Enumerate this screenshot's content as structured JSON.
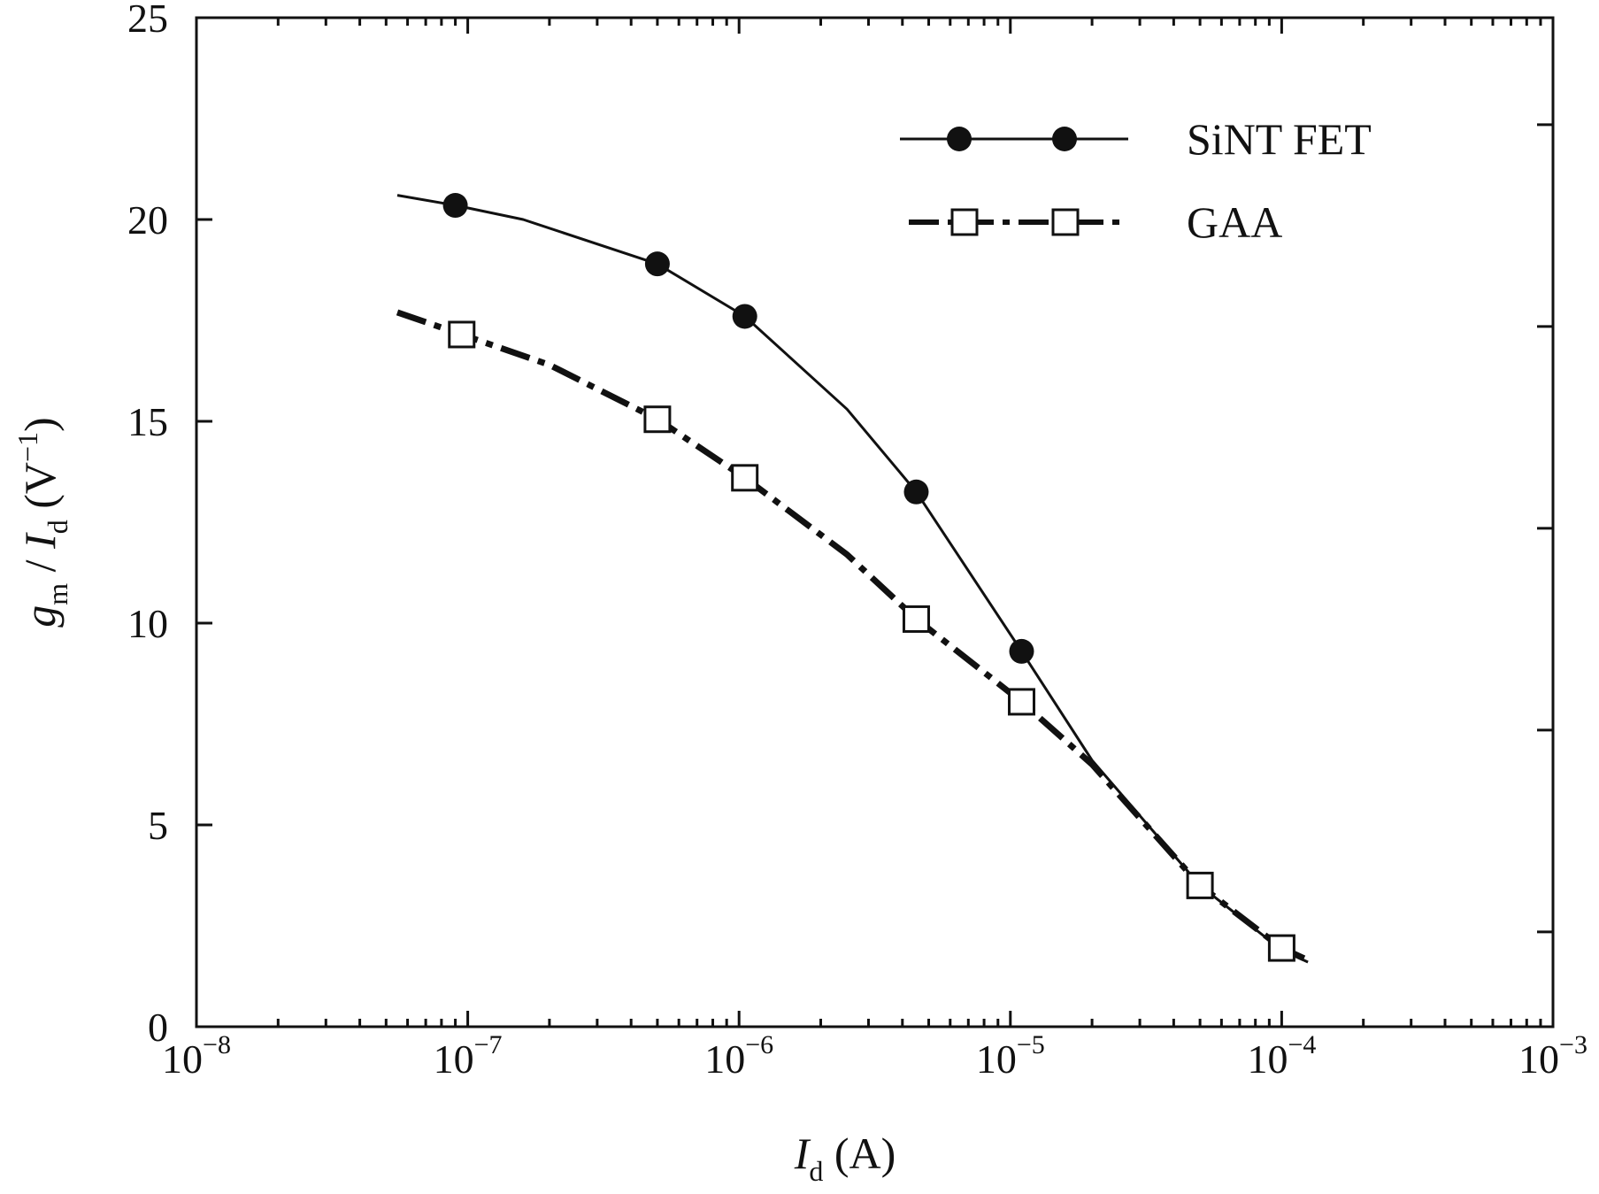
{
  "chart_data": {
    "type": "line",
    "title": "",
    "xlabel": {
      "main": "I",
      "sub": "d",
      "rest": " (A)"
    },
    "ylabel": {
      "g": "g",
      "g_sub": "m",
      "slash": " / ",
      "i": "I",
      "i_sub": "d",
      "unit_open": " (V",
      "unit_sup": "−1",
      "unit_close": ")"
    },
    "x_scale": "log",
    "xlim": [
      1e-08,
      0.001
    ],
    "ylim": [
      0,
      25
    ],
    "x_ticks": [
      {
        "value": 1e-08,
        "base": "10",
        "exp": "−8"
      },
      {
        "value": 1e-07,
        "base": "10",
        "exp": "−7"
      },
      {
        "value": 1e-06,
        "base": "10",
        "exp": "−6"
      },
      {
        "value": 1e-05,
        "base": "10",
        "exp": "−5"
      },
      {
        "value": 0.0001,
        "base": "10",
        "exp": "−4"
      },
      {
        "value": 0.001,
        "base": "10",
        "exp": "−3"
      }
    ],
    "y_ticks": [
      {
        "value": 0,
        "label": "0"
      },
      {
        "value": 5,
        "label": "5"
      },
      {
        "value": 10,
        "label": "10"
      },
      {
        "value": 15,
        "label": "15"
      },
      {
        "value": 20,
        "label": "20"
      },
      {
        "value": 25,
        "label": "25"
      }
    ],
    "grid": false,
    "legend_position": "top-right",
    "series": [
      {
        "name": "SiNT FET",
        "marker": "filled-circle",
        "line": "solid",
        "color": "#111111",
        "curve": [
          [
            5.5e-08,
            20.6
          ],
          [
            9e-08,
            20.35
          ],
          [
            1.6e-07,
            20.0
          ],
          [
            5e-07,
            18.9
          ],
          [
            1.05e-06,
            17.6
          ],
          [
            2.5e-06,
            15.3
          ],
          [
            4.5e-06,
            13.25
          ],
          [
            1.1e-05,
            9.3
          ],
          [
            2e-05,
            6.6
          ],
          [
            5e-05,
            3.5
          ],
          [
            0.0001,
            1.9
          ],
          [
            0.000125,
            1.6
          ]
        ],
        "markers": [
          [
            9e-08,
            20.35
          ],
          [
            5e-07,
            18.9
          ],
          [
            1.05e-06,
            17.6
          ],
          [
            4.5e-06,
            13.25
          ],
          [
            1.1e-05,
            9.3
          ]
        ]
      },
      {
        "name": "GAA",
        "marker": "open-square",
        "line": "dash-dot",
        "color": "#111111",
        "curve": [
          [
            5.5e-08,
            17.7
          ],
          [
            9.5e-08,
            17.15
          ],
          [
            2e-07,
            16.4
          ],
          [
            5e-07,
            15.05
          ],
          [
            1.05e-06,
            13.6
          ],
          [
            2.5e-06,
            11.7
          ],
          [
            4.5e-06,
            10.1
          ],
          [
            1.1e-05,
            8.05
          ],
          [
            2e-05,
            6.5
          ],
          [
            5e-05,
            3.5
          ],
          [
            0.0001,
            1.95
          ],
          [
            0.000125,
            1.65
          ]
        ],
        "markers": [
          [
            9.5e-08,
            17.15
          ],
          [
            5e-07,
            15.05
          ],
          [
            1.05e-06,
            13.6
          ],
          [
            4.5e-06,
            10.1
          ],
          [
            1.1e-05,
            8.05
          ],
          [
            5e-05,
            3.5
          ],
          [
            0.0001,
            1.95
          ]
        ]
      }
    ]
  },
  "colors": {
    "ink": "#111111",
    "background": "#ffffff"
  }
}
